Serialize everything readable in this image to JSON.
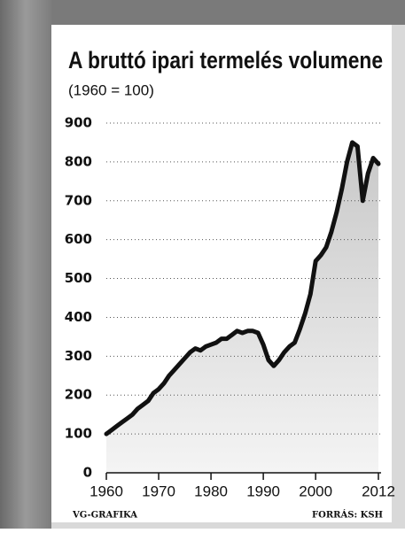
{
  "chart_data": {
    "type": "line",
    "title": "A bruttó ipari termelés volumene",
    "subtitle": "(1960 = 100)",
    "x": [
      1960,
      1961,
      1962,
      1963,
      1964,
      1965,
      1966,
      1967,
      1968,
      1969,
      1970,
      1971,
      1972,
      1973,
      1974,
      1975,
      1976,
      1977,
      1978,
      1979,
      1980,
      1981,
      1982,
      1983,
      1984,
      1985,
      1986,
      1987,
      1988,
      1989,
      1990,
      1991,
      1992,
      1993,
      1994,
      1995,
      1996,
      1997,
      1998,
      1999,
      2000,
      2001,
      2002,
      2003,
      2004,
      2005,
      2006,
      2007,
      2008,
      2009,
      2010,
      2011,
      2012
    ],
    "values": [
      100,
      110,
      120,
      130,
      140,
      150,
      165,
      175,
      185,
      205,
      215,
      230,
      250,
      265,
      280,
      295,
      310,
      320,
      315,
      325,
      330,
      335,
      345,
      345,
      355,
      365,
      360,
      365,
      365,
      360,
      330,
      290,
      275,
      290,
      310,
      325,
      335,
      370,
      410,
      460,
      545,
      560,
      580,
      620,
      670,
      730,
      800,
      850,
      840,
      700,
      770,
      810,
      795
    ],
    "color": "#111111",
    "xlim": [
      1960,
      2012
    ],
    "xticks": [
      1960,
      1970,
      1980,
      1990,
      2000,
      2012
    ],
    "ylim": [
      0,
      900
    ],
    "yticks": [
      0,
      100,
      200,
      300,
      400,
      500,
      600,
      700,
      800,
      900
    ],
    "grid": true,
    "footer_left": "VG-GRAFIKA",
    "footer_right": "FORRÁS: KSH"
  }
}
